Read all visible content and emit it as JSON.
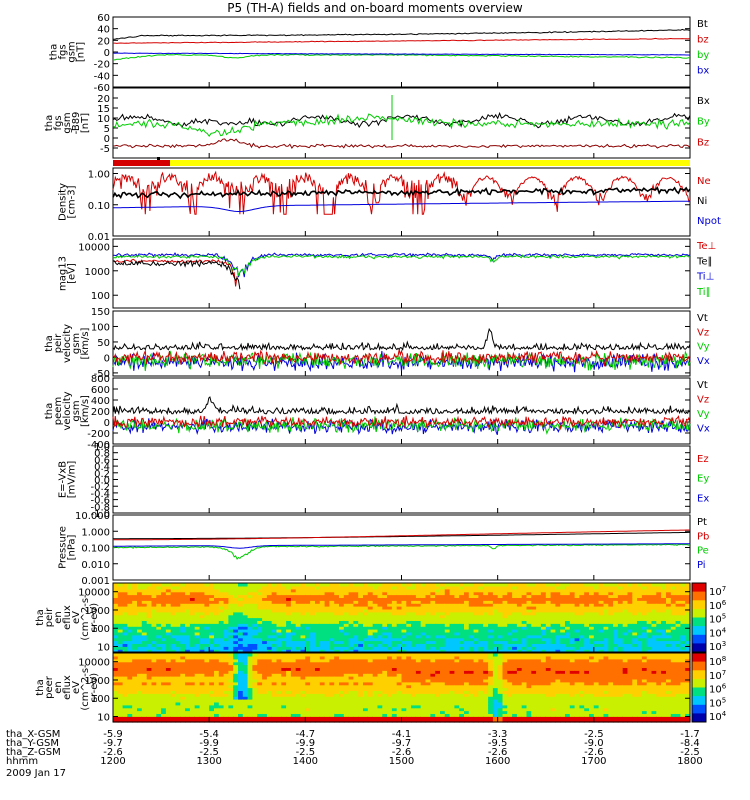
{
  "title": "P5 (TH-A) fields and on-board moments overview",
  "date": "2009 Jan 17",
  "colors": {
    "black": "#000000",
    "red": "#d40000",
    "green": "#00cc00",
    "blue": "#0000dd",
    "yellow": "#ffff00"
  },
  "chart_data": [
    {
      "id": "fgs",
      "type": "line",
      "ylabel": [
        "tha",
        "fgs",
        "gsm",
        "[nT]"
      ],
      "ylim": [
        -60,
        60
      ],
      "ticks": [
        "60",
        "40",
        "20",
        "0",
        "-20",
        "-40",
        "-60"
      ],
      "legend": [
        {
          "name": "Bt",
          "color": "black"
        },
        {
          "name": "bz",
          "color": "red"
        },
        {
          "name": "by",
          "color": "green"
        },
        {
          "name": "bx",
          "color": "blue"
        }
      ]
    },
    {
      "id": "fgs-dsl",
      "type": "line",
      "ylabel": [
        "tha",
        "fgs",
        "gsm",
        "-B89",
        "[nT]"
      ],
      "ylim": [
        -10,
        25
      ],
      "ticks": [
        "20",
        "15",
        "10",
        "5",
        "0",
        "-5"
      ],
      "legend": [
        {
          "name": "Bx",
          "color": "black"
        },
        {
          "name": "By",
          "color": "green"
        },
        {
          "name": "Bz",
          "color": "red"
        }
      ]
    },
    {
      "id": "density",
      "type": "line",
      "ylabel": [
        "Density",
        "[cm-3]"
      ],
      "ylim": [
        0.01,
        1.5
      ],
      "log": true,
      "ticks": [
        "1.00",
        "0.10",
        "0.01"
      ],
      "legend": [
        {
          "name": "Ne",
          "color": "red"
        },
        {
          "name": "Ni",
          "color": "black"
        },
        {
          "name": "Npot",
          "color": "blue"
        }
      ]
    },
    {
      "id": "temp",
      "type": "line",
      "ylabel": [
        "mag13",
        "[eV]"
      ],
      "ylim": [
        30,
        20000
      ],
      "log": true,
      "ticks": [
        "10000",
        "1000",
        "100"
      ],
      "legend": [
        {
          "name": "Te⊥",
          "color": "red"
        },
        {
          "name": "Te∥",
          "color": "black"
        },
        {
          "name": "Ti⊥",
          "color": "blue"
        },
        {
          "name": "Ti∥",
          "color": "green"
        }
      ]
    },
    {
      "id": "peir-vel",
      "type": "line",
      "ylabel": [
        "tha",
        "peir",
        "velocity",
        "gsm",
        "[km/s]"
      ],
      "ylim": [
        -60,
        150
      ],
      "ticks": [
        "150",
        "100",
        "50",
        "0",
        "-50"
      ],
      "legend": [
        {
          "name": "Vt",
          "color": "black"
        },
        {
          "name": "Vz",
          "color": "red"
        },
        {
          "name": "Vy",
          "color": "green"
        },
        {
          "name": "Vx",
          "color": "blue"
        }
      ]
    },
    {
      "id": "peem-vel",
      "type": "line",
      "ylabel": [
        "tha",
        "peem",
        "velocity",
        "gsm",
        "[km/s]"
      ],
      "ylim": [
        -400,
        800
      ],
      "ticks": [
        "800",
        "600",
        "400",
        "200",
        "0",
        "-200",
        "-400"
      ],
      "legend": [
        {
          "name": "Vt",
          "color": "black"
        },
        {
          "name": "Vz",
          "color": "red"
        },
        {
          "name": "Vy",
          "color": "green"
        },
        {
          "name": "Vx",
          "color": "blue"
        }
      ]
    },
    {
      "id": "efield",
      "type": "line",
      "ylabel": [
        "E=-VxB",
        "[mV/m]"
      ],
      "ylim": [
        -1,
        1
      ],
      "ticks": [
        "1.0",
        "0.8",
        "0.6",
        "0.4",
        "0.2",
        "0.0",
        "-0.2",
        "-0.4",
        "-0.6",
        "-0.8",
        "-1.0"
      ],
      "legend": [
        {
          "name": "Ez",
          "color": "red"
        },
        {
          "name": "Ey",
          "color": "green"
        },
        {
          "name": "Ex",
          "color": "blue"
        }
      ]
    },
    {
      "id": "pressure",
      "type": "line",
      "ylabel": [
        "Pressure",
        "[nPa]"
      ],
      "ylim": [
        0.001,
        10
      ],
      "log": true,
      "ticks": [
        "10.000",
        "1.000",
        "0.100",
        "0.010",
        "0.001"
      ],
      "legend": [
        {
          "name": "Pt",
          "color": "black"
        },
        {
          "name": "Pb",
          "color": "red"
        },
        {
          "name": "Pe",
          "color": "green"
        },
        {
          "name": "Pi",
          "color": "blue"
        }
      ]
    },
    {
      "id": "peir-spec",
      "type": "heatmap",
      "ylabel": [
        "tha",
        "peir",
        "en",
        "eflux",
        "eV",
        "(cm^2-s-",
        "sr-eV)"
      ],
      "ylim": [
        5,
        30000
      ],
      "log": true,
      "ticks": [
        "10000",
        "1000",
        "100",
        "10"
      ],
      "colorbar": {
        "labels": [
          "10^7",
          "10^6",
          "10^5",
          "10^4",
          "10^3"
        ]
      }
    },
    {
      "id": "peer-spec",
      "type": "heatmap",
      "ylabel": [
        "tha",
        "peer",
        "en",
        "eflux",
        "eV",
        "(cm^2-s-",
        "sr-eV)"
      ],
      "ylim": [
        5,
        30000
      ],
      "log": true,
      "ticks": [
        "10000",
        "1000",
        "100",
        "10"
      ],
      "colorbar": {
        "labels": [
          "10^8",
          "10^7",
          "10^6",
          "10^5",
          "10^4"
        ]
      }
    }
  ],
  "xaxis": {
    "rows": [
      {
        "label": "tha_X-GSM",
        "values": [
          "-5.9",
          "-5.4",
          "-4.7",
          "-4.1",
          "-3.3",
          "-2.5",
          "-1.7"
        ]
      },
      {
        "label": "tha_Y-GSM",
        "values": [
          "-9.7",
          "-9.9",
          "-9.9",
          "-9.7",
          "-9.5",
          "-9.0",
          "-8.4"
        ]
      },
      {
        "label": "tha_Z-GSM",
        "values": [
          "-2.6",
          "-2.5",
          "-2.5",
          "-2.6",
          "-2.6",
          "-2.6",
          "-2.5"
        ]
      },
      {
        "label": "hhmm",
        "values": [
          "1200",
          "1300",
          "1400",
          "1500",
          "1600",
          "1700",
          "1800"
        ]
      }
    ]
  }
}
